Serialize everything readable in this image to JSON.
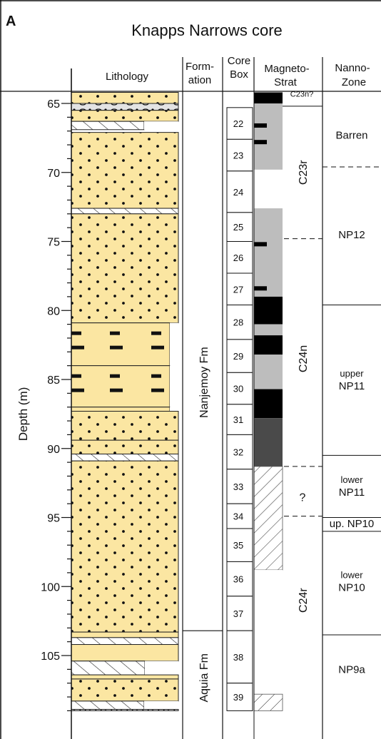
{
  "panel_label": "A",
  "title": "Knapps Narrows core",
  "headers": {
    "lithology": "Lithology",
    "formation_1": "Form-",
    "formation_2": "ation",
    "corebox_1": "Core",
    "corebox_2": "Box",
    "magneto_1": "Magneto-",
    "magneto_2": "Strat",
    "nanno_1": "Nanno-",
    "nanno_2": "Zone"
  },
  "depth_axis": {
    "label": "Depth (m)",
    "range": [
      64,
      109
    ],
    "major_ticks": [
      65,
      70,
      75,
      80,
      85,
      90,
      95,
      100,
      105
    ],
    "minor_step": 1
  },
  "formations": [
    {
      "name": "Nanjemoy Fm",
      "top": 64,
      "bottom": 103.2
    },
    {
      "name": "Aquia Fm",
      "top": 103.2,
      "bottom": 109
    }
  ],
  "core_boxes": [
    {
      "label": "22",
      "top": 65.3,
      "bottom": 67.6
    },
    {
      "label": "23",
      "top": 67.6,
      "bottom": 69.9
    },
    {
      "label": "24",
      "top": 69.9,
      "bottom": 72.9
    },
    {
      "label": "25",
      "top": 72.9,
      "bottom": 75.0
    },
    {
      "label": "26",
      "top": 75.0,
      "bottom": 77.3
    },
    {
      "label": "27",
      "top": 77.3,
      "bottom": 79.6
    },
    {
      "label": "28",
      "top": 79.6,
      "bottom": 82.1
    },
    {
      "label": "29",
      "top": 82.1,
      "bottom": 84.5
    },
    {
      "label": "30",
      "top": 84.5,
      "bottom": 86.8
    },
    {
      "label": "31",
      "top": 86.8,
      "bottom": 89.0
    },
    {
      "label": "32",
      "top": 89.0,
      "bottom": 91.5
    },
    {
      "label": "33",
      "top": 91.5,
      "bottom": 94.0
    },
    {
      "label": "34",
      "top": 94.0,
      "bottom": 95.8
    },
    {
      "label": "35",
      "top": 95.8,
      "bottom": 98.2
    },
    {
      "label": "36",
      "top": 98.2,
      "bottom": 100.7
    },
    {
      "label": "37",
      "top": 100.7,
      "bottom": 103.2
    },
    {
      "label": "38",
      "top": 103.2,
      "bottom": 107.0
    },
    {
      "label": "39",
      "top": 107.0,
      "bottom": 109.0
    }
  ],
  "magnetostrat_blocks": [
    {
      "top": 64.2,
      "bottom": 65.0,
      "fill": "black"
    },
    {
      "top": 65.0,
      "bottom": 69.8,
      "fill": "gray"
    },
    {
      "top": 69.8,
      "bottom": 72.6,
      "fill": "white"
    },
    {
      "top": 72.6,
      "bottom": 79.0,
      "fill": "gray"
    },
    {
      "top": 79.0,
      "bottom": 81.0,
      "fill": "black"
    },
    {
      "top": 81.0,
      "bottom": 81.8,
      "fill": "gray"
    },
    {
      "top": 81.8,
      "bottom": 83.2,
      "fill": "black"
    },
    {
      "top": 83.2,
      "bottom": 85.7,
      "fill": "gray"
    },
    {
      "top": 85.7,
      "bottom": 87.8,
      "fill": "black"
    },
    {
      "top": 87.8,
      "bottom": 91.3,
      "fill": "darkgray"
    },
    {
      "top": 91.3,
      "bottom": 98.8,
      "fill": "hatch"
    },
    {
      "top": 98.8,
      "bottom": 107.8,
      "fill": "white"
    },
    {
      "top": 107.8,
      "bottom": 109.0,
      "fill": "hatch"
    }
  ],
  "magnetostrat_bars": [
    66.6,
    67.8,
    75.2,
    78.4
  ],
  "magnetostrat_labels": [
    {
      "text": "C23n?",
      "depth": 64.6,
      "style": "small"
    },
    {
      "text": "C23r",
      "depth": 70.0,
      "style": "vertical"
    },
    {
      "text": "C24n",
      "depth": 83.5,
      "style": "vertical"
    },
    {
      "text": "?",
      "depth": 93.5,
      "style": "normal"
    },
    {
      "text": "C24r",
      "depth": 101.0,
      "style": "vertical"
    }
  ],
  "magnetostrat_boundaries": [
    {
      "depth": 65.2,
      "dashed": false
    },
    {
      "depth": 74.8,
      "dashed": true
    },
    {
      "depth": 91.3,
      "dashed": true
    },
    {
      "depth": 94.9,
      "dashed": true
    }
  ],
  "nanno_boundaries": [
    {
      "depth": 69.6,
      "dashed": true
    },
    {
      "depth": 79.6,
      "dashed": false
    },
    {
      "depth": 90.5,
      "dashed": false
    },
    {
      "depth": 95.0,
      "dashed": false
    },
    {
      "depth": 96.0,
      "dashed": false
    },
    {
      "depth": 103.5,
      "dashed": false
    }
  ],
  "nanno_zones": [
    {
      "lines": [
        "Barren"
      ],
      "depth": 67.3,
      "size": "normal"
    },
    {
      "lines": [
        "NP12"
      ],
      "depth": 74.5,
      "size": "normal"
    },
    {
      "lines": [
        "upper",
        "NP11"
      ],
      "depth": 85.0,
      "size": "mixed"
    },
    {
      "lines": [
        "lower",
        "NP11"
      ],
      "depth": 92.7,
      "size": "mixed"
    },
    {
      "lines": [
        "up. NP10"
      ],
      "depth": 95.45,
      "size": "normal"
    },
    {
      "lines": [
        "lower",
        "NP10"
      ],
      "depth": 99.6,
      "size": "mixed"
    },
    {
      "lines": [
        "NP9a"
      ],
      "depth": 106.0,
      "size": "normal"
    }
  ],
  "lithology_units": [
    {
      "top": 64.2,
      "bottom": 65.0,
      "pattern": "sand",
      "right": "full"
    },
    {
      "top": 65.0,
      "bottom": 65.5,
      "pattern": "gravel",
      "right": "full"
    },
    {
      "top": 65.5,
      "bottom": 66.3,
      "pattern": "sand",
      "right": "full"
    },
    {
      "top": 66.3,
      "bottom": 66.9,
      "pattern": "hatch",
      "right": "mid"
    },
    {
      "top": 67.1,
      "bottom": 72.6,
      "pattern": "sand",
      "right": "full"
    },
    {
      "top": 72.6,
      "bottom": 73.0,
      "pattern": "hatch",
      "right": "full"
    },
    {
      "top": 73.0,
      "bottom": 80.9,
      "pattern": "sand",
      "right": "full"
    },
    {
      "top": 80.9,
      "bottom": 84.0,
      "pattern": "dash",
      "right": "narrow"
    },
    {
      "top": 84.0,
      "bottom": 87.0,
      "pattern": "dash",
      "right": "narrow"
    },
    {
      "top": 87.0,
      "bottom": 87.3,
      "pattern": "plain",
      "right": "narrow"
    },
    {
      "top": 87.3,
      "bottom": 89.4,
      "pattern": "sand",
      "right": "full"
    },
    {
      "top": 89.4,
      "bottom": 90.4,
      "pattern": "sand",
      "right": "full"
    },
    {
      "top": 90.4,
      "bottom": 90.9,
      "pattern": "hatch",
      "right": "full"
    },
    {
      "top": 90.9,
      "bottom": 103.3,
      "pattern": "sand",
      "right": "full"
    },
    {
      "top": 103.3,
      "bottom": 103.7,
      "pattern": "plain",
      "right": "full"
    },
    {
      "top": 103.7,
      "bottom": 104.2,
      "pattern": "hatch",
      "right": "full"
    },
    {
      "top": 104.2,
      "bottom": 105.4,
      "pattern": "plain",
      "right": "full"
    },
    {
      "top": 105.4,
      "bottom": 106.4,
      "pattern": "hatch",
      "right": "mid2"
    },
    {
      "top": 106.4,
      "bottom": 106.7,
      "pattern": "plain",
      "right": "full"
    },
    {
      "top": 106.7,
      "bottom": 108.3,
      "pattern": "sand",
      "right": "full"
    },
    {
      "top": 108.3,
      "bottom": 108.9,
      "pattern": "hatch",
      "right": "mid"
    },
    {
      "top": 108.9,
      "bottom": 109.0,
      "pattern": "gravel",
      "right": "full"
    }
  ]
}
